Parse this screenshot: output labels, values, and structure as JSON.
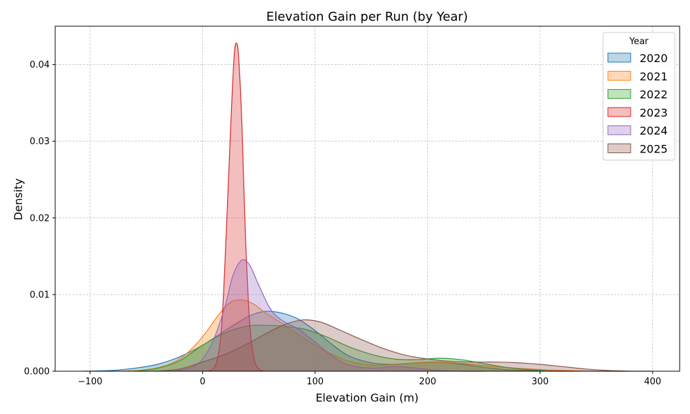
{
  "chart_data": {
    "type": "area",
    "title": "Elevation Gain per Run (by Year)",
    "xlabel": "Elevation Gain (m)",
    "ylabel": "Density",
    "xlim": [
      -131,
      424
    ],
    "ylim": [
      0,
      0.045
    ],
    "xticks": [
      -100,
      0,
      100,
      200,
      300,
      400
    ],
    "xtick_labels": [
      "−100",
      "0",
      "100",
      "200",
      "300",
      "400"
    ],
    "yticks": [
      0,
      0.01,
      0.02,
      0.03,
      0.04
    ],
    "ytick_labels": [
      "0.000",
      "0.01",
      "0.02",
      "0.03",
      "0.04"
    ],
    "grid": true,
    "legend": {
      "title": "Year",
      "placement": "top-right"
    },
    "series": [
      {
        "name": "2020",
        "color": "#1f77b4",
        "x": [
          -105,
          -80,
          -60,
          -40,
          -20,
          0,
          20,
          40,
          55,
          70,
          85,
          100,
          115,
          130,
          150,
          170,
          190,
          210,
          230,
          250,
          270,
          290,
          310,
          330
        ],
        "y": [
          0,
          0.0001,
          0.0004,
          0.0009,
          0.0019,
          0.0034,
          0.0053,
          0.0071,
          0.0078,
          0.0076,
          0.0068,
          0.0053,
          0.0035,
          0.002,
          0.0011,
          0.0009,
          0.0011,
          0.0012,
          0.0009,
          0.0005,
          0.0002,
          0.0001,
          0,
          0
        ]
      },
      {
        "name": "2021",
        "color": "#ff7f0e",
        "x": [
          -70,
          -50,
          -30,
          -15,
          0,
          15,
          25,
          35,
          45,
          55,
          70,
          85,
          100,
          115,
          130,
          150,
          170,
          190,
          210,
          230,
          260,
          290,
          320,
          350,
          380
        ],
        "y": [
          0,
          0.0002,
          0.0009,
          0.0022,
          0.0045,
          0.0075,
          0.009,
          0.0093,
          0.0088,
          0.0077,
          0.0063,
          0.0048,
          0.0034,
          0.0022,
          0.0013,
          0.0008,
          0.0009,
          0.0011,
          0.0012,
          0.001,
          0.0006,
          0.0003,
          0.0001,
          0,
          0
        ]
      },
      {
        "name": "2022",
        "color": "#2ca02c",
        "x": [
          -60,
          -40,
          -20,
          0,
          20,
          40,
          55,
          70,
          90,
          110,
          130,
          150,
          170,
          190,
          210,
          230,
          250,
          270,
          290,
          310
        ],
        "y": [
          0,
          0.0004,
          0.0014,
          0.0034,
          0.005,
          0.0059,
          0.006,
          0.0059,
          0.0055,
          0.0045,
          0.0032,
          0.0022,
          0.0016,
          0.0015,
          0.0017,
          0.0015,
          0.001,
          0.0005,
          0.0002,
          0
        ]
      },
      {
        "name": "2023",
        "color": "#d62728",
        "x": [
          5,
          12,
          17,
          21,
          25,
          28,
          30,
          32,
          35,
          38,
          42,
          46,
          50,
          55
        ],
        "y": [
          0,
          0.001,
          0.006,
          0.018,
          0.032,
          0.041,
          0.0428,
          0.041,
          0.032,
          0.018,
          0.006,
          0.0015,
          0.0003,
          0
        ]
      },
      {
        "name": "2024",
        "color": "#9467bd",
        "x": [
          -25,
          -10,
          0,
          10,
          20,
          27,
          35,
          42,
          50,
          60,
          70,
          85,
          100,
          115,
          130,
          150,
          170,
          190,
          210,
          230,
          250
        ],
        "y": [
          0,
          0.0005,
          0.0016,
          0.0042,
          0.0085,
          0.0125,
          0.0145,
          0.0138,
          0.0112,
          0.0082,
          0.0067,
          0.0055,
          0.0038,
          0.002,
          0.0008,
          0.0004,
          0.0006,
          0.0004,
          0.0001,
          0,
          0
        ]
      },
      {
        "name": "2025",
        "color": "#8c564b",
        "x": [
          -40,
          -20,
          0,
          20,
          40,
          60,
          75,
          90,
          105,
          120,
          140,
          160,
          180,
          200,
          220,
          240,
          260,
          280,
          300,
          320,
          340,
          360,
          380,
          400
        ],
        "y": [
          0,
          0.0003,
          0.0012,
          0.0022,
          0.0036,
          0.0052,
          0.0062,
          0.0067,
          0.0064,
          0.0055,
          0.0042,
          0.003,
          0.0021,
          0.0016,
          0.0013,
          0.0012,
          0.0012,
          0.0011,
          0.0009,
          0.0006,
          0.0003,
          0.0001,
          0,
          0
        ]
      }
    ]
  }
}
